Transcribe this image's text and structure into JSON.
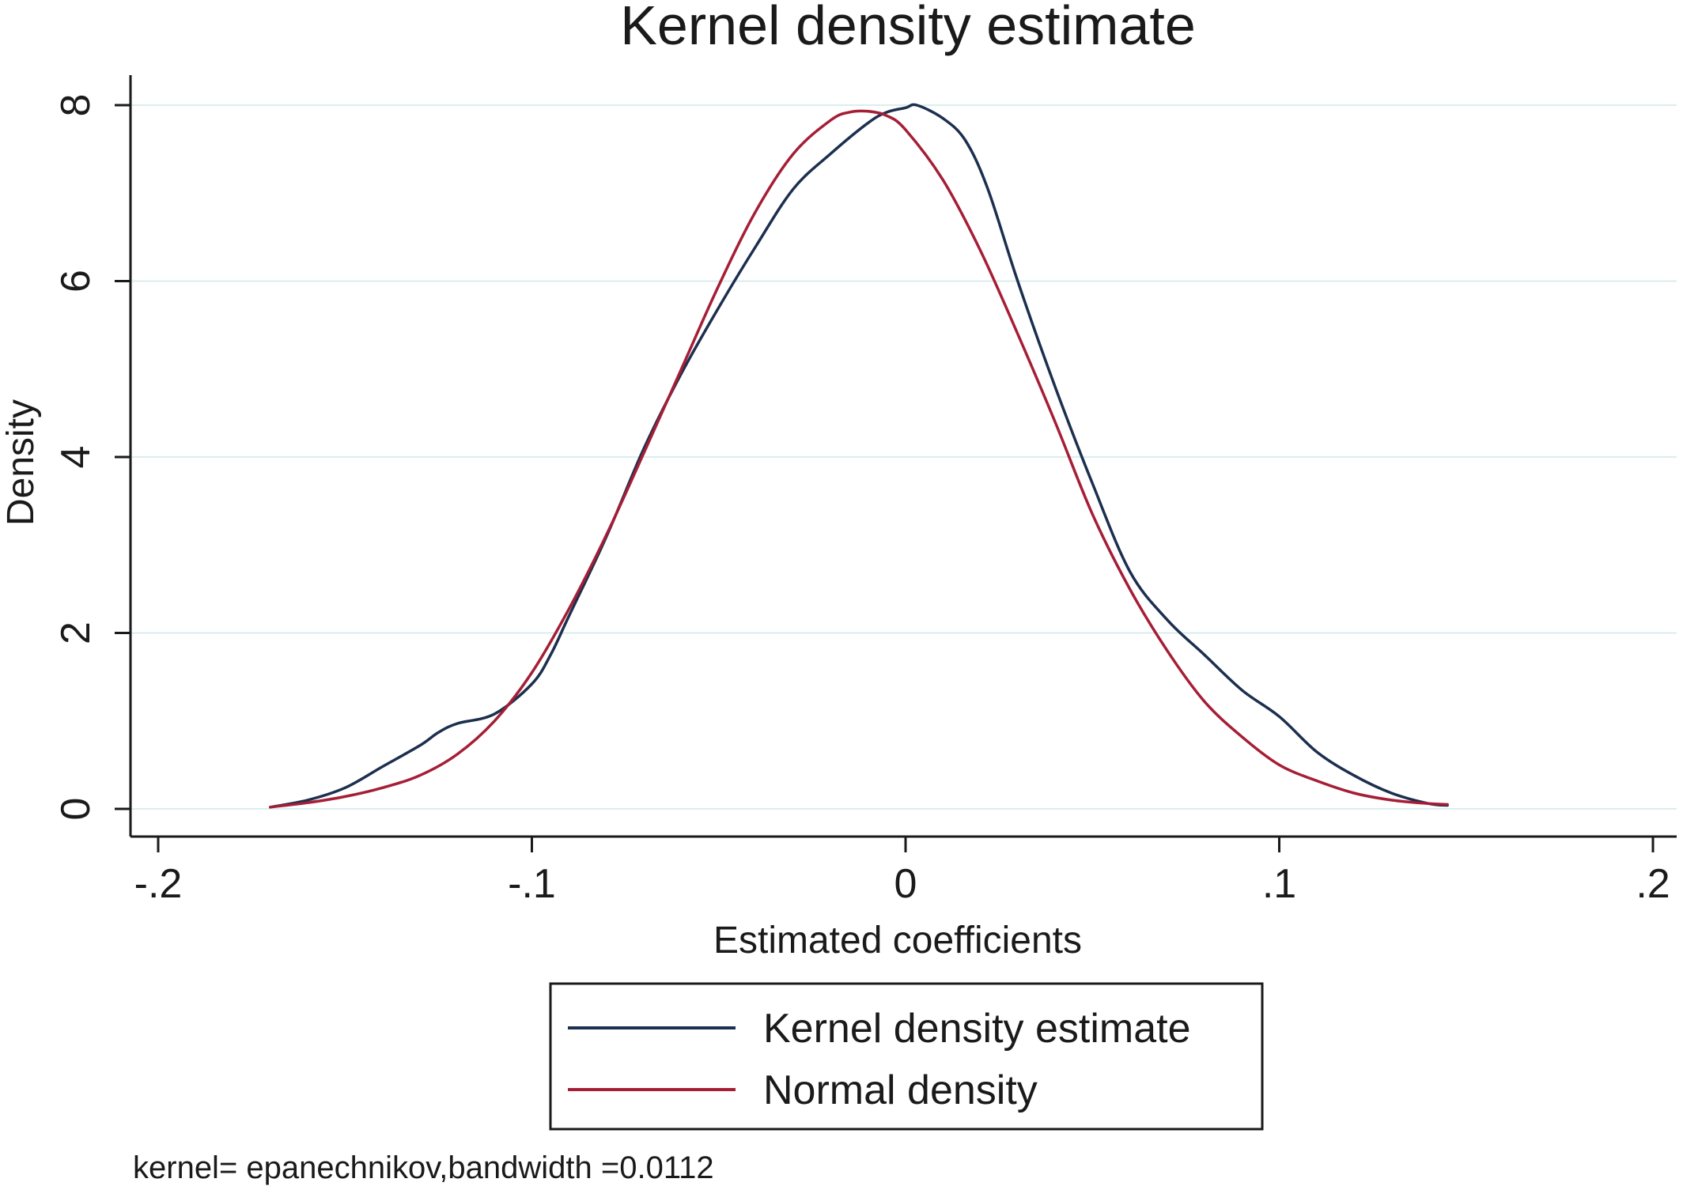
{
  "chart_data": {
    "type": "line",
    "title": "Kernel density estimate",
    "xlabel": "Estimated coefficients",
    "ylabel": "Density",
    "xlim": [
      -0.2,
      0.2
    ],
    "ylim": [
      0,
      8
    ],
    "x_ticks": [
      -0.2,
      -0.1,
      0,
      0.1,
      0.2
    ],
    "x_tick_labels": [
      "-.2",
      "-.1",
      "0",
      ".1",
      ".2"
    ],
    "y_ticks": [
      0,
      2,
      4,
      6,
      8
    ],
    "y_tick_labels": [
      "0",
      "2",
      "4",
      "6",
      "8"
    ],
    "grid": true,
    "legend_position": "bottom",
    "note": "kernel= epanechnikov,bandwidth =0.0112",
    "series": [
      {
        "name": "Kernel density estimate",
        "color": "#1c2f4f",
        "x": [
          -0.17,
          -0.16,
          -0.15,
          -0.14,
          -0.13,
          -0.125,
          -0.12,
          -0.11,
          -0.1,
          -0.095,
          -0.09,
          -0.08,
          -0.07,
          -0.06,
          -0.05,
          -0.04,
          -0.03,
          -0.02,
          -0.01,
          -0.005,
          0,
          0.003,
          0.01,
          0.016,
          0.022,
          0.03,
          0.04,
          0.05,
          0.06,
          0.07,
          0.08,
          0.09,
          0.1,
          0.11,
          0.12,
          0.13,
          0.14,
          0.145
        ],
        "y": [
          0.02,
          0.1,
          0.24,
          0.48,
          0.72,
          0.87,
          0.97,
          1.08,
          1.42,
          1.75,
          2.2,
          3.1,
          4.1,
          4.95,
          5.7,
          6.4,
          7.05,
          7.45,
          7.8,
          7.92,
          7.97,
          8.0,
          7.85,
          7.6,
          7.05,
          6.0,
          4.8,
          3.7,
          2.7,
          2.15,
          1.75,
          1.35,
          1.05,
          0.65,
          0.38,
          0.18,
          0.06,
          0.04
        ]
      },
      {
        "name": "Normal density",
        "color": "#a51e36",
        "x": [
          -0.17,
          -0.16,
          -0.15,
          -0.14,
          -0.13,
          -0.12,
          -0.11,
          -0.1,
          -0.09,
          -0.08,
          -0.07,
          -0.06,
          -0.05,
          -0.04,
          -0.03,
          -0.02,
          -0.015,
          -0.01,
          -0.005,
          0,
          0.01,
          0.02,
          0.03,
          0.04,
          0.05,
          0.06,
          0.07,
          0.08,
          0.09,
          0.1,
          0.11,
          0.12,
          0.13,
          0.14,
          0.145
        ],
        "y": [
          0.02,
          0.07,
          0.14,
          0.24,
          0.38,
          0.62,
          1.0,
          1.55,
          2.28,
          3.12,
          4.05,
          5.0,
          5.95,
          6.8,
          7.45,
          7.83,
          7.92,
          7.93,
          7.88,
          7.72,
          7.15,
          6.35,
          5.4,
          4.4,
          3.35,
          2.5,
          1.8,
          1.22,
          0.82,
          0.5,
          0.32,
          0.18,
          0.1,
          0.06,
          0.05
        ]
      }
    ]
  }
}
